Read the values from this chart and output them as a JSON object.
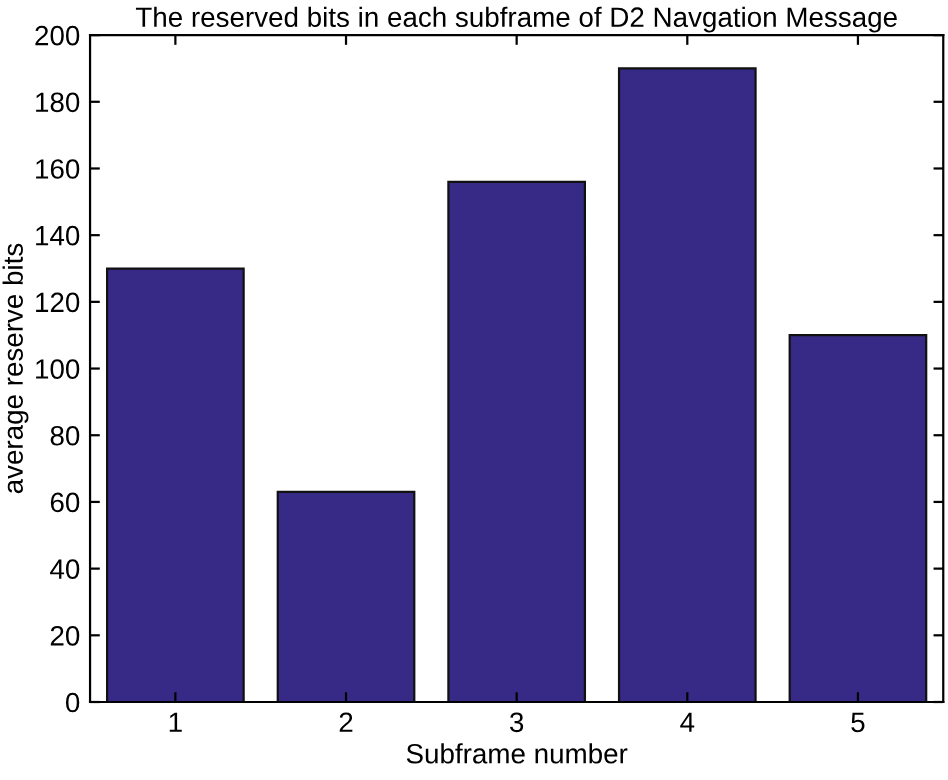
{
  "chart_data": {
    "type": "bar",
    "title": "The reserved bits in each subframe of D2 Navgation Message",
    "xlabel": "Subframe number",
    "ylabel": "average reserve bits",
    "categories": [
      "1",
      "2",
      "3",
      "4",
      "5"
    ],
    "values": [
      130,
      63,
      156,
      190,
      110
    ],
    "color": "#372a87",
    "ylim": [
      0,
      200
    ],
    "yticks": [
      0,
      20,
      40,
      60,
      80,
      100,
      120,
      140,
      160,
      180,
      200
    ],
    "grid": false
  }
}
